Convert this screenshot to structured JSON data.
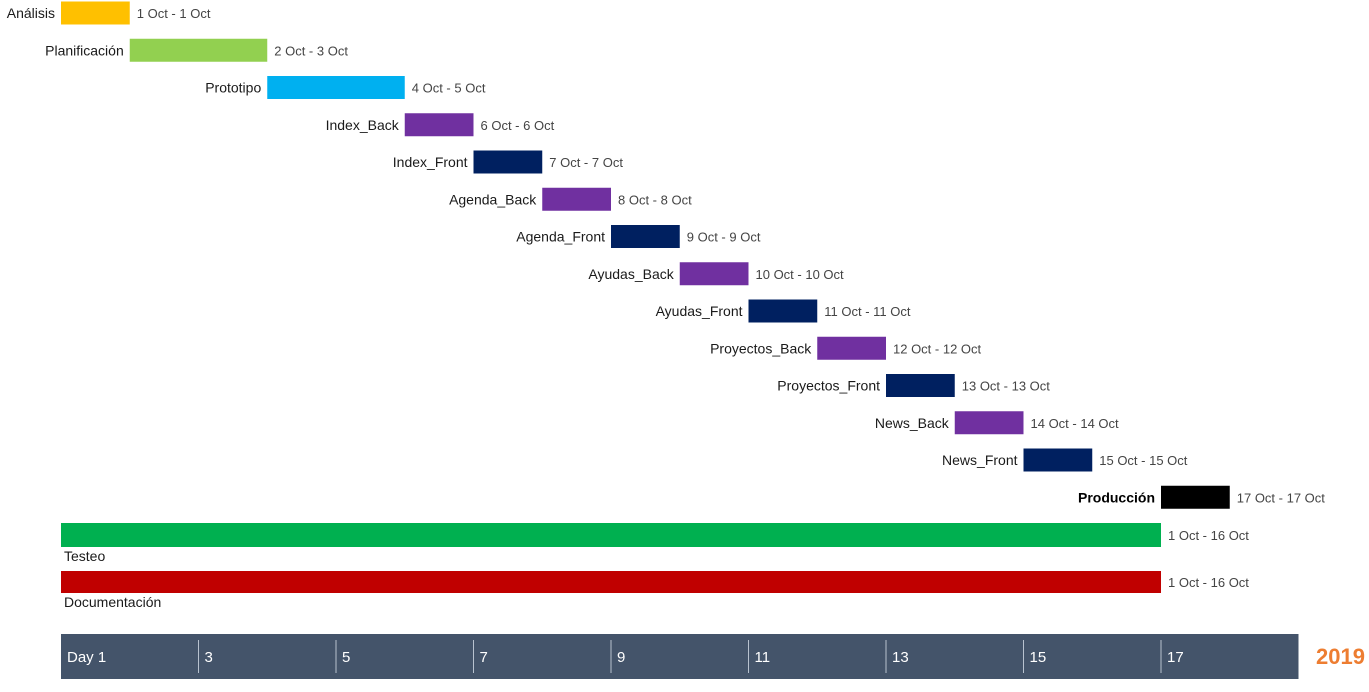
{
  "chart_data": {
    "type": "gantt",
    "x_unit": "day of October 2019",
    "x_range": [
      1,
      19
    ],
    "year": "2019",
    "axis": {
      "ticks": [
        {
          "day": 1,
          "label": "Day 1"
        },
        {
          "day": 3,
          "label": "3"
        },
        {
          "day": 5,
          "label": "5"
        },
        {
          "day": 7,
          "label": "7"
        },
        {
          "day": 9,
          "label": "9"
        },
        {
          "day": 11,
          "label": "11"
        },
        {
          "day": 13,
          "label": "13"
        },
        {
          "day": 15,
          "label": "15"
        },
        {
          "day": 17,
          "label": "17"
        }
      ],
      "background_color": "#44546a",
      "year_color": "#ed7d31"
    },
    "tasks": [
      {
        "name": "Análisis",
        "start": 1,
        "end": 1,
        "range_label": "1 Oct - 1 Oct",
        "color": "#ffc000"
      },
      {
        "name": "Planificación",
        "start": 2,
        "end": 3,
        "range_label": "2 Oct - 3 Oct",
        "color": "#92d050"
      },
      {
        "name": "Prototipo",
        "start": 4,
        "end": 5,
        "range_label": "4 Oct - 5 Oct",
        "color": "#00b0f0"
      },
      {
        "name": "Index_Back",
        "start": 6,
        "end": 6,
        "range_label": "6 Oct - 6 Oct",
        "color": "#7030a0"
      },
      {
        "name": "Index_Front",
        "start": 7,
        "end": 7,
        "range_label": "7 Oct - 7 Oct",
        "color": "#002060"
      },
      {
        "name": "Agenda_Back",
        "start": 8,
        "end": 8,
        "range_label": "8 Oct - 8 Oct",
        "color": "#7030a0"
      },
      {
        "name": "Agenda_Front",
        "start": 9,
        "end": 9,
        "range_label": "9 Oct - 9 Oct",
        "color": "#002060"
      },
      {
        "name": "Ayudas_Back",
        "start": 10,
        "end": 10,
        "range_label": "10 Oct - 10 Oct",
        "color": "#7030a0"
      },
      {
        "name": "Ayudas_Front",
        "start": 11,
        "end": 11,
        "range_label": "11 Oct - 11 Oct",
        "color": "#002060"
      },
      {
        "name": "Proyectos_Back",
        "start": 12,
        "end": 12,
        "range_label": "12 Oct - 12 Oct",
        "color": "#7030a0"
      },
      {
        "name": "Proyectos_Front",
        "start": 13,
        "end": 13,
        "range_label": "13 Oct - 13 Oct",
        "color": "#002060"
      },
      {
        "name": "News_Back",
        "start": 14,
        "end": 14,
        "range_label": "14 Oct - 14 Oct",
        "color": "#7030a0"
      },
      {
        "name": "News_Front",
        "start": 15,
        "end": 15,
        "range_label": "15 Oct - 15 Oct",
        "color": "#002060"
      },
      {
        "name": "Producción",
        "start": 17,
        "end": 17,
        "range_label": "17 Oct - 17 Oct",
        "color": "#000000",
        "bold": true
      }
    ],
    "long_tasks": [
      {
        "name": "Testeo",
        "start": 1,
        "end": 16,
        "range_label": "1 Oct - 16 Oct",
        "color": "#00b050"
      },
      {
        "name": "Documentación",
        "start": 1,
        "end": 16,
        "range_label": "1 Oct - 16 Oct",
        "color": "#c00000"
      }
    ]
  }
}
